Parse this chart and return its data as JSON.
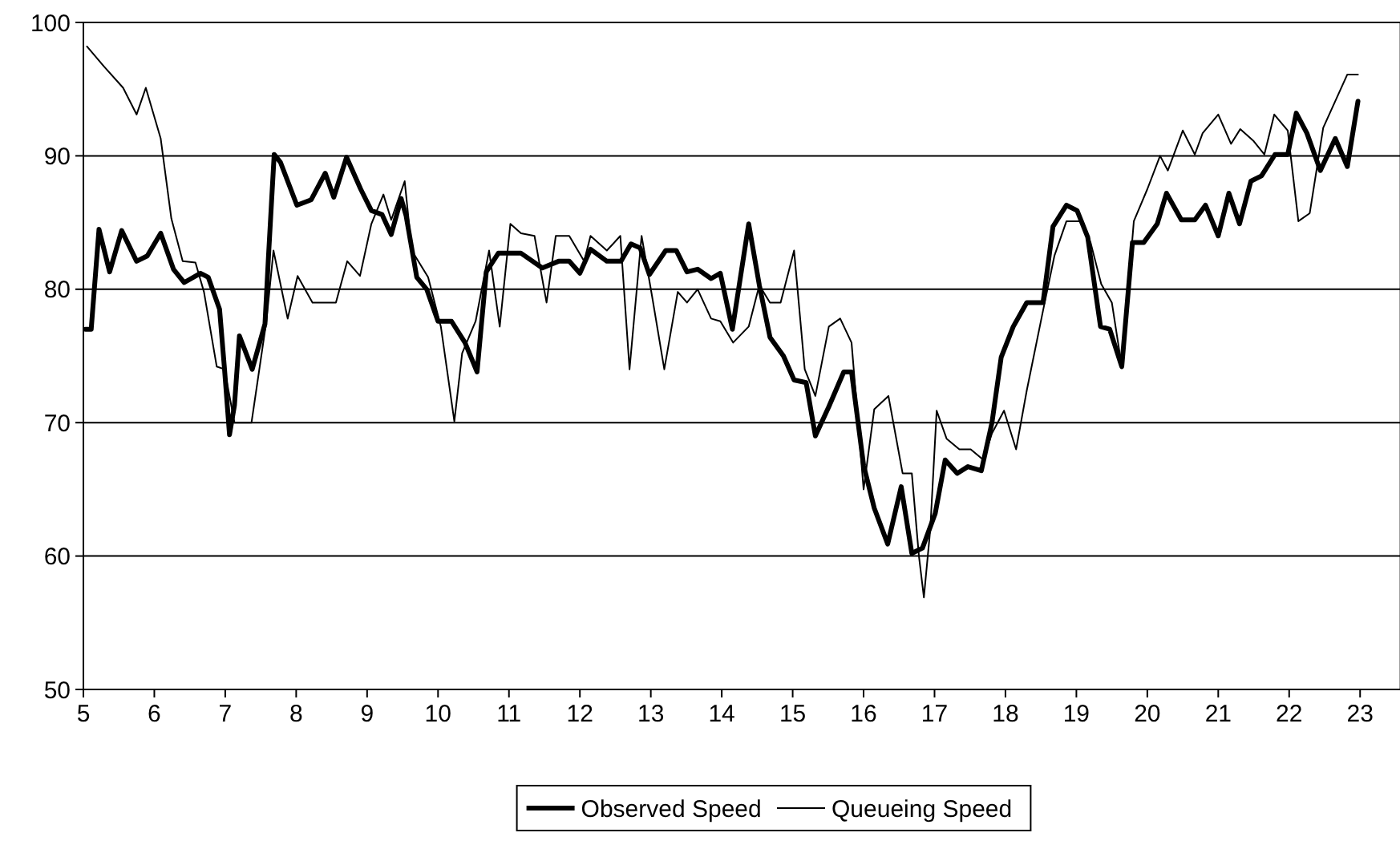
{
  "chart_data": {
    "type": "line",
    "xlim": [
      5,
      23.54
    ],
    "xticks": [
      5,
      6,
      7,
      8,
      9,
      10,
      11,
      12,
      13,
      14,
      15,
      16,
      17,
      18,
      19,
      20,
      21,
      22,
      23
    ],
    "ylim": [
      50,
      100
    ],
    "yticks": [
      50,
      60,
      70,
      80,
      90,
      100
    ],
    "grid": "y",
    "legend": "bottom",
    "line_style": "solid",
    "marker": "none",
    "series": [
      {
        "name": "Observed Speed",
        "color": "#000000",
        "x": [
          5.03,
          5.11,
          5.22,
          5.37,
          5.54,
          5.75,
          5.9,
          6.09,
          6.27,
          6.42,
          6.65,
          6.76,
          6.92,
          6.99,
          7.06,
          7.13,
          7.2,
          7.38,
          7.56,
          7.61,
          7.69,
          7.78,
          8.01,
          8.21,
          8.41,
          8.53,
          8.71,
          8.91,
          9.06,
          9.21,
          9.34,
          9.48,
          9.55,
          9.7,
          9.84,
          10.0,
          10.19,
          10.38,
          10.55,
          10.68,
          10.85,
          11.17,
          11.47,
          11.7,
          11.85,
          12.0,
          12.15,
          12.38,
          12.58,
          12.72,
          12.85,
          12.98,
          13.21,
          13.36,
          13.51,
          13.66,
          13.85,
          13.98,
          14.15,
          14.38,
          14.53,
          14.68,
          14.87,
          15.02,
          15.19,
          15.32,
          15.51,
          15.72,
          15.83,
          16.0,
          16.15,
          16.34,
          16.53,
          16.68,
          16.83,
          17.01,
          17.15,
          17.32,
          17.47,
          17.66,
          17.81,
          17.94,
          18.11,
          18.3,
          18.53,
          18.67,
          18.86,
          19.01,
          19.16,
          19.34,
          19.47,
          19.64,
          19.79,
          19.95,
          20.14,
          20.27,
          20.48,
          20.67,
          20.82,
          21.0,
          21.15,
          21.3,
          21.46,
          21.61,
          21.8,
          21.98,
          22.1,
          22.25,
          22.44,
          22.65,
          22.82,
          22.97
        ],
        "values": [
          77,
          77,
          84.5,
          81.3,
          84.4,
          82.1,
          82.5,
          84.2,
          81.5,
          80.5,
          81.2,
          80.9,
          78.5,
          74,
          69.1,
          71.3,
          76.5,
          74,
          77.4,
          82.5,
          90.1,
          89.5,
          86.3,
          86.7,
          88.7,
          86.9,
          89.9,
          87.5,
          85.9,
          85.6,
          84.1,
          86.8,
          85.5,
          80.9,
          80,
          77.6,
          77.6,
          76,
          73.8,
          81.3,
          82.7,
          82.7,
          81.6,
          82.1,
          82.1,
          81.2,
          83,
          82.1,
          82.1,
          83.4,
          83.1,
          81.1,
          82.9,
          82.9,
          81.3,
          81.5,
          80.8,
          81.2,
          77,
          84.9,
          80.3,
          76.4,
          75,
          73.2,
          73,
          69,
          71.2,
          73.8,
          73.8,
          66.8,
          63.6,
          60.9,
          65.2,
          60.2,
          60.6,
          63.2,
          67.2,
          66.2,
          66.7,
          66.4,
          70,
          74.9,
          77.2,
          79,
          79,
          84.7,
          86.3,
          85.9,
          83.9,
          77.2,
          77,
          74.2,
          83.5,
          83.5,
          84.9,
          87.2,
          85.2,
          85.2,
          86.3,
          84,
          87.2,
          84.9,
          88.1,
          88.5,
          90.1,
          90.1,
          93.2,
          91.7,
          88.9,
          91.3,
          89.2,
          94.1
        ]
      },
      {
        "name": "Queueing Speed",
        "color": "#000000",
        "x": [
          5.05,
          5.29,
          5.56,
          5.75,
          5.88,
          6.09,
          6.24,
          6.4,
          6.58,
          6.7,
          6.88,
          6.99,
          7.13,
          7.37,
          7.58,
          7.68,
          7.88,
          8.02,
          8.23,
          8.56,
          8.72,
          8.9,
          9.06,
          9.23,
          9.34,
          9.53,
          9.63,
          9.86,
          10.04,
          10.23,
          10.34,
          10.53,
          10.72,
          10.87,
          11.02,
          11.17,
          11.36,
          11.53,
          11.66,
          11.85,
          12.06,
          12.15,
          12.38,
          12.57,
          12.7,
          12.87,
          13.02,
          13.19,
          13.38,
          13.51,
          13.66,
          13.85,
          13.98,
          14.16,
          14.38,
          14.53,
          14.68,
          14.83,
          15.02,
          15.17,
          15.32,
          15.51,
          15.67,
          15.83,
          16.0,
          16.15,
          16.35,
          16.55,
          16.68,
          16.78,
          16.85,
          16.94,
          17.03,
          17.17,
          17.35,
          17.51,
          17.69,
          17.81,
          17.98,
          18.15,
          18.3,
          18.53,
          18.69,
          18.86,
          19.09,
          19.2,
          19.35,
          19.5,
          19.64,
          19.81,
          20.0,
          20.18,
          20.29,
          20.5,
          20.67,
          20.78,
          21.0,
          21.18,
          21.31,
          21.5,
          21.65,
          21.79,
          21.98,
          22.13,
          22.29,
          22.48,
          22.82,
          22.97
        ],
        "values": [
          98.2,
          96.7,
          95.1,
          93.1,
          95.1,
          91.3,
          85.3,
          82.1,
          82,
          79.8,
          74.2,
          74,
          70,
          70,
          77.6,
          82.9,
          77.8,
          81,
          79,
          79,
          82.1,
          81,
          84.9,
          87.1,
          85.2,
          88.1,
          82.9,
          80.9,
          77.2,
          70.1,
          75.2,
          77.6,
          82.9,
          77.2,
          84.9,
          84.2,
          84,
          79,
          84,
          84,
          82.1,
          84,
          82.9,
          84,
          74,
          84,
          79.4,
          74,
          79.8,
          79,
          80,
          77.8,
          77.6,
          76,
          77.2,
          80.3,
          79,
          79,
          82.9,
          74,
          72,
          77.2,
          77.8,
          76,
          65,
          71,
          72,
          66.2,
          66.2,
          60,
          56.9,
          62,
          70.9,
          68.8,
          68,
          68,
          67.2,
          69.2,
          70.9,
          68,
          72.4,
          78.4,
          82.5,
          85.1,
          85.1,
          83.5,
          80.4,
          79,
          74.2,
          85.1,
          87.5,
          90,
          88.9,
          91.9,
          90.1,
          91.7,
          93.1,
          90.9,
          92,
          91.1,
          90.1,
          93.1,
          91.9,
          85.1,
          85.7,
          92.1,
          96.1,
          96.1
        ]
      }
    ]
  }
}
